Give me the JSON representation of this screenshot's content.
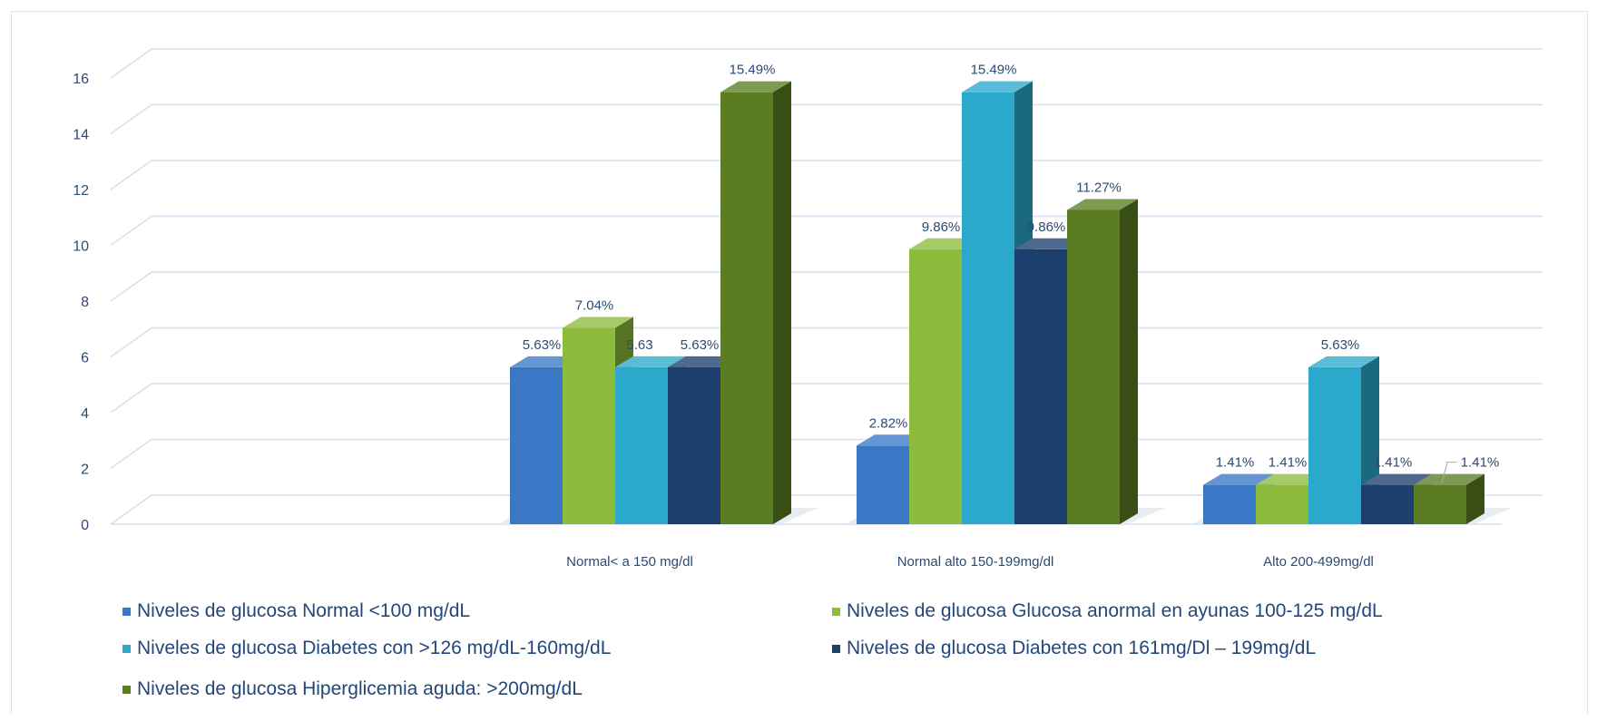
{
  "chart_data": {
    "type": "bar",
    "style": "3d-clustered-column",
    "title": "",
    "xlabel": "",
    "ylabel": "",
    "ylim": [
      0,
      16
    ],
    "y_ticks": [
      "0",
      "2",
      "4",
      "6",
      "8",
      "10",
      "12",
      "14",
      "16"
    ],
    "grid": true,
    "legend_position": "bottom",
    "categories": [
      "Normal< a 150 mg/dl",
      "Normal alto 150-199mg/dl",
      "Alto 200-499mg/dl"
    ],
    "series": [
      {
        "name": "Niveles de glucosa Normal <100 mg/dL",
        "color": "#3a78c6",
        "values": [
          5.63,
          2.82,
          1.41
        ],
        "labels": [
          "5.63%",
          "2.82%",
          "1.41%"
        ]
      },
      {
        "name": "Niveles de glucosa Glucosa anormal en ayunas  100-125 mg/dL",
        "color": "#8dbb3c",
        "values": [
          7.04,
          9.86,
          1.41
        ],
        "labels": [
          "7.04%",
          "9.86%",
          "1.41%"
        ]
      },
      {
        "name": "Niveles de glucosa Diabetes con >126 mg/dL-160mg/dL",
        "color": "#2ba9cc",
        "values": [
          5.63,
          15.49,
          5.63
        ],
        "labels": [
          "5.63",
          "15.49%",
          "5.63%"
        ]
      },
      {
        "name": "Niveles de glucosa Diabetes con 161mg/Dl – 199mg/dL",
        "color": "#1c3f6e",
        "values": [
          5.63,
          9.86,
          1.41
        ],
        "labels": [
          "5.63%",
          "9.86%",
          "1.41%"
        ]
      },
      {
        "name": "Niveles de glucosa Hiperglicemia aguda: >200mg/dL",
        "color": "#5a7d22",
        "values": [
          15.49,
          11.27,
          1.41
        ],
        "labels": [
          "15.49%",
          "11.27%",
          "1.41%"
        ]
      }
    ]
  }
}
